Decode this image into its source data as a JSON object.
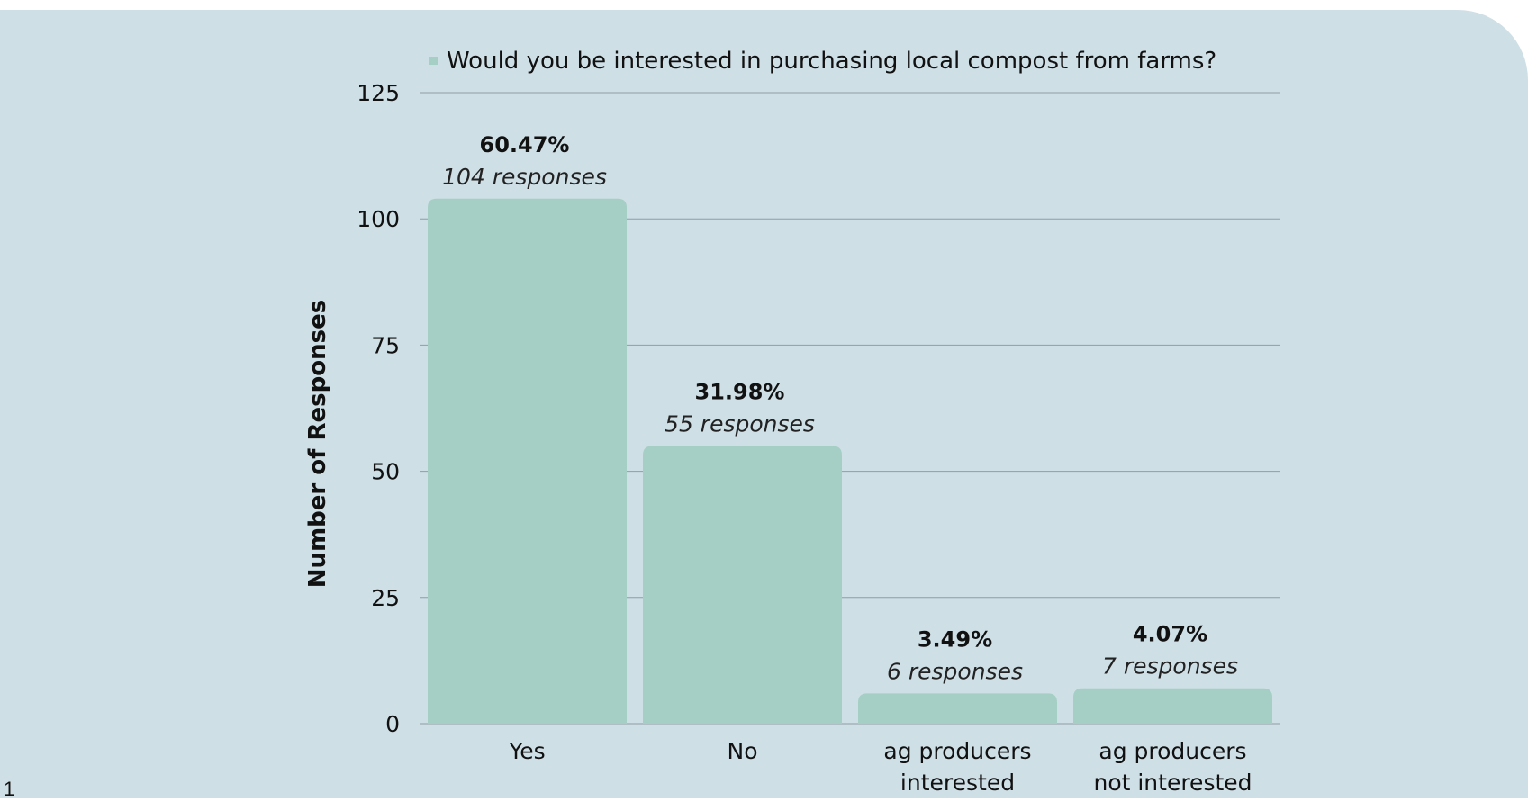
{
  "page_number": "1",
  "colors": {
    "background": "#cfdfe6",
    "bar": "#a5cfc4",
    "gridline": "#8e9ea3",
    "text": "#111111"
  },
  "chart_data": {
    "type": "bar",
    "categories": [
      [
        "Yes"
      ],
      [
        "No"
      ],
      [
        "ag producers",
        "interested"
      ],
      [
        "ag producers",
        "not interested"
      ]
    ],
    "values": [
      104,
      55,
      6,
      7
    ],
    "percent_labels": [
      "60.47%",
      "31.98%",
      "3.49%",
      "4.07%"
    ],
    "count_labels": [
      "104 responses",
      "55 responses",
      "6 responses",
      "7 responses"
    ],
    "legend": "Would you be interested in purchasing local compost from farms?",
    "legend_position": "top",
    "title": "",
    "xlabel": "",
    "ylabel": "Number of Responses",
    "ylim": [
      0,
      125
    ],
    "yticks": [
      0,
      25,
      50,
      75,
      100,
      125
    ],
    "grid": true
  }
}
